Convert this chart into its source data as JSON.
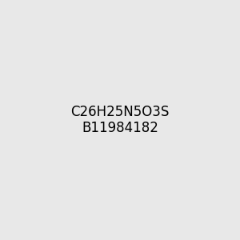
{
  "title": "",
  "bg_color": "#e8e8e8",
  "bond_color": "#000000",
  "atom_colors": {
    "N": "#0000ff",
    "O": "#ff0000",
    "S": "#cccc00",
    "H": "#008080",
    "C": "#000000"
  },
  "figsize": [
    3.0,
    3.0
  ],
  "dpi": 100
}
